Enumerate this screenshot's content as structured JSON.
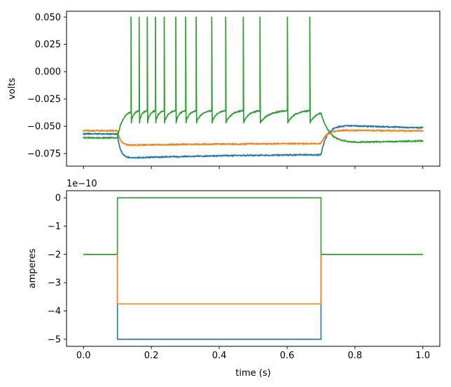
{
  "figure": {
    "background_color": "#ffffff",
    "frame_color": "#000000",
    "text_color": "#000000"
  },
  "chart_data": [
    {
      "type": "line",
      "title": "",
      "xlabel": "",
      "ylabel": "volts",
      "xlim": [
        -0.05,
        1.05
      ],
      "ylim": [
        -0.0865,
        0.0553
      ],
      "grid": false,
      "legend": null,
      "xticks": [
        0.0,
        0.2,
        0.4,
        0.6,
        0.8,
        1.0
      ],
      "xtick_labels_visible": false,
      "yticks": [
        0.05,
        0.025,
        0.0,
        -0.025,
        -0.05,
        -0.075
      ],
      "ytick_labels": [
        "0.050",
        "0.025",
        "0.000",
        "−0.025",
        "−0.050",
        "−0.075"
      ],
      "stimulus_window_s": [
        0.1,
        0.7
      ],
      "noise_band_v": 0.0008,
      "series": [
        {
          "name": "voltage-blue",
          "color": "#1f77b4",
          "kind": "subthreshold",
          "rest_v": -0.057,
          "step_min_v": -0.0795,
          "step_end_v": -0.0757,
          "post_peak_v": -0.0495,
          "end_v": -0.0523
        },
        {
          "name": "voltage-orange",
          "color": "#ff7f0e",
          "kind": "subthreshold",
          "rest_v": -0.054,
          "step_min_v": -0.0676,
          "step_end_v": -0.0656,
          "post_peak_v": -0.0537,
          "end_v": -0.0545
        },
        {
          "name": "voltage-green",
          "color": "#2ca02c",
          "kind": "spiking",
          "rest_v": -0.0605,
          "spike_peak_v": 0.05,
          "spike_threshold_v": -0.036,
          "spike_reset_v": -0.047,
          "spike_times_s": [
            0.14,
            0.164,
            0.188,
            0.212,
            0.238,
            0.272,
            0.301,
            0.332,
            0.378,
            0.419,
            0.471,
            0.52,
            0.601,
            0.667
          ],
          "post_min_v": -0.0663,
          "end_v": -0.0627
        }
      ]
    },
    {
      "type": "step",
      "title": "",
      "xlabel": "time (s)",
      "ylabel": "amperes",
      "offset_text": "1e−10",
      "scale_factor": 1e-10,
      "xlim": [
        -0.05,
        1.05
      ],
      "ylim": [
        -5.25,
        0.25
      ],
      "grid": false,
      "legend": null,
      "xticks": [
        0.0,
        0.2,
        0.4,
        0.6,
        0.8,
        1.0
      ],
      "xtick_labels": [
        "0.0",
        "0.2",
        "0.4",
        "0.6",
        "0.8",
        "1.0"
      ],
      "yticks": [
        0,
        -1,
        -2,
        -3,
        -4,
        -5
      ],
      "ytick_labels": [
        "0",
        "−1",
        "−2",
        "−3",
        "−4",
        "−5"
      ],
      "step_window_s": [
        0.1,
        0.7
      ],
      "x_range_s": [
        0.0,
        1.0
      ],
      "series": [
        {
          "name": "current-blue",
          "color": "#1f77b4",
          "baseline_1e10": -2,
          "step_1e10": -5
        },
        {
          "name": "current-orange",
          "color": "#ff7f0e",
          "baseline_1e10": -2,
          "step_1e10": -3.75
        },
        {
          "name": "current-green",
          "color": "#2ca02c",
          "baseline_1e10": -2,
          "step_1e10": 0
        }
      ]
    }
  ]
}
